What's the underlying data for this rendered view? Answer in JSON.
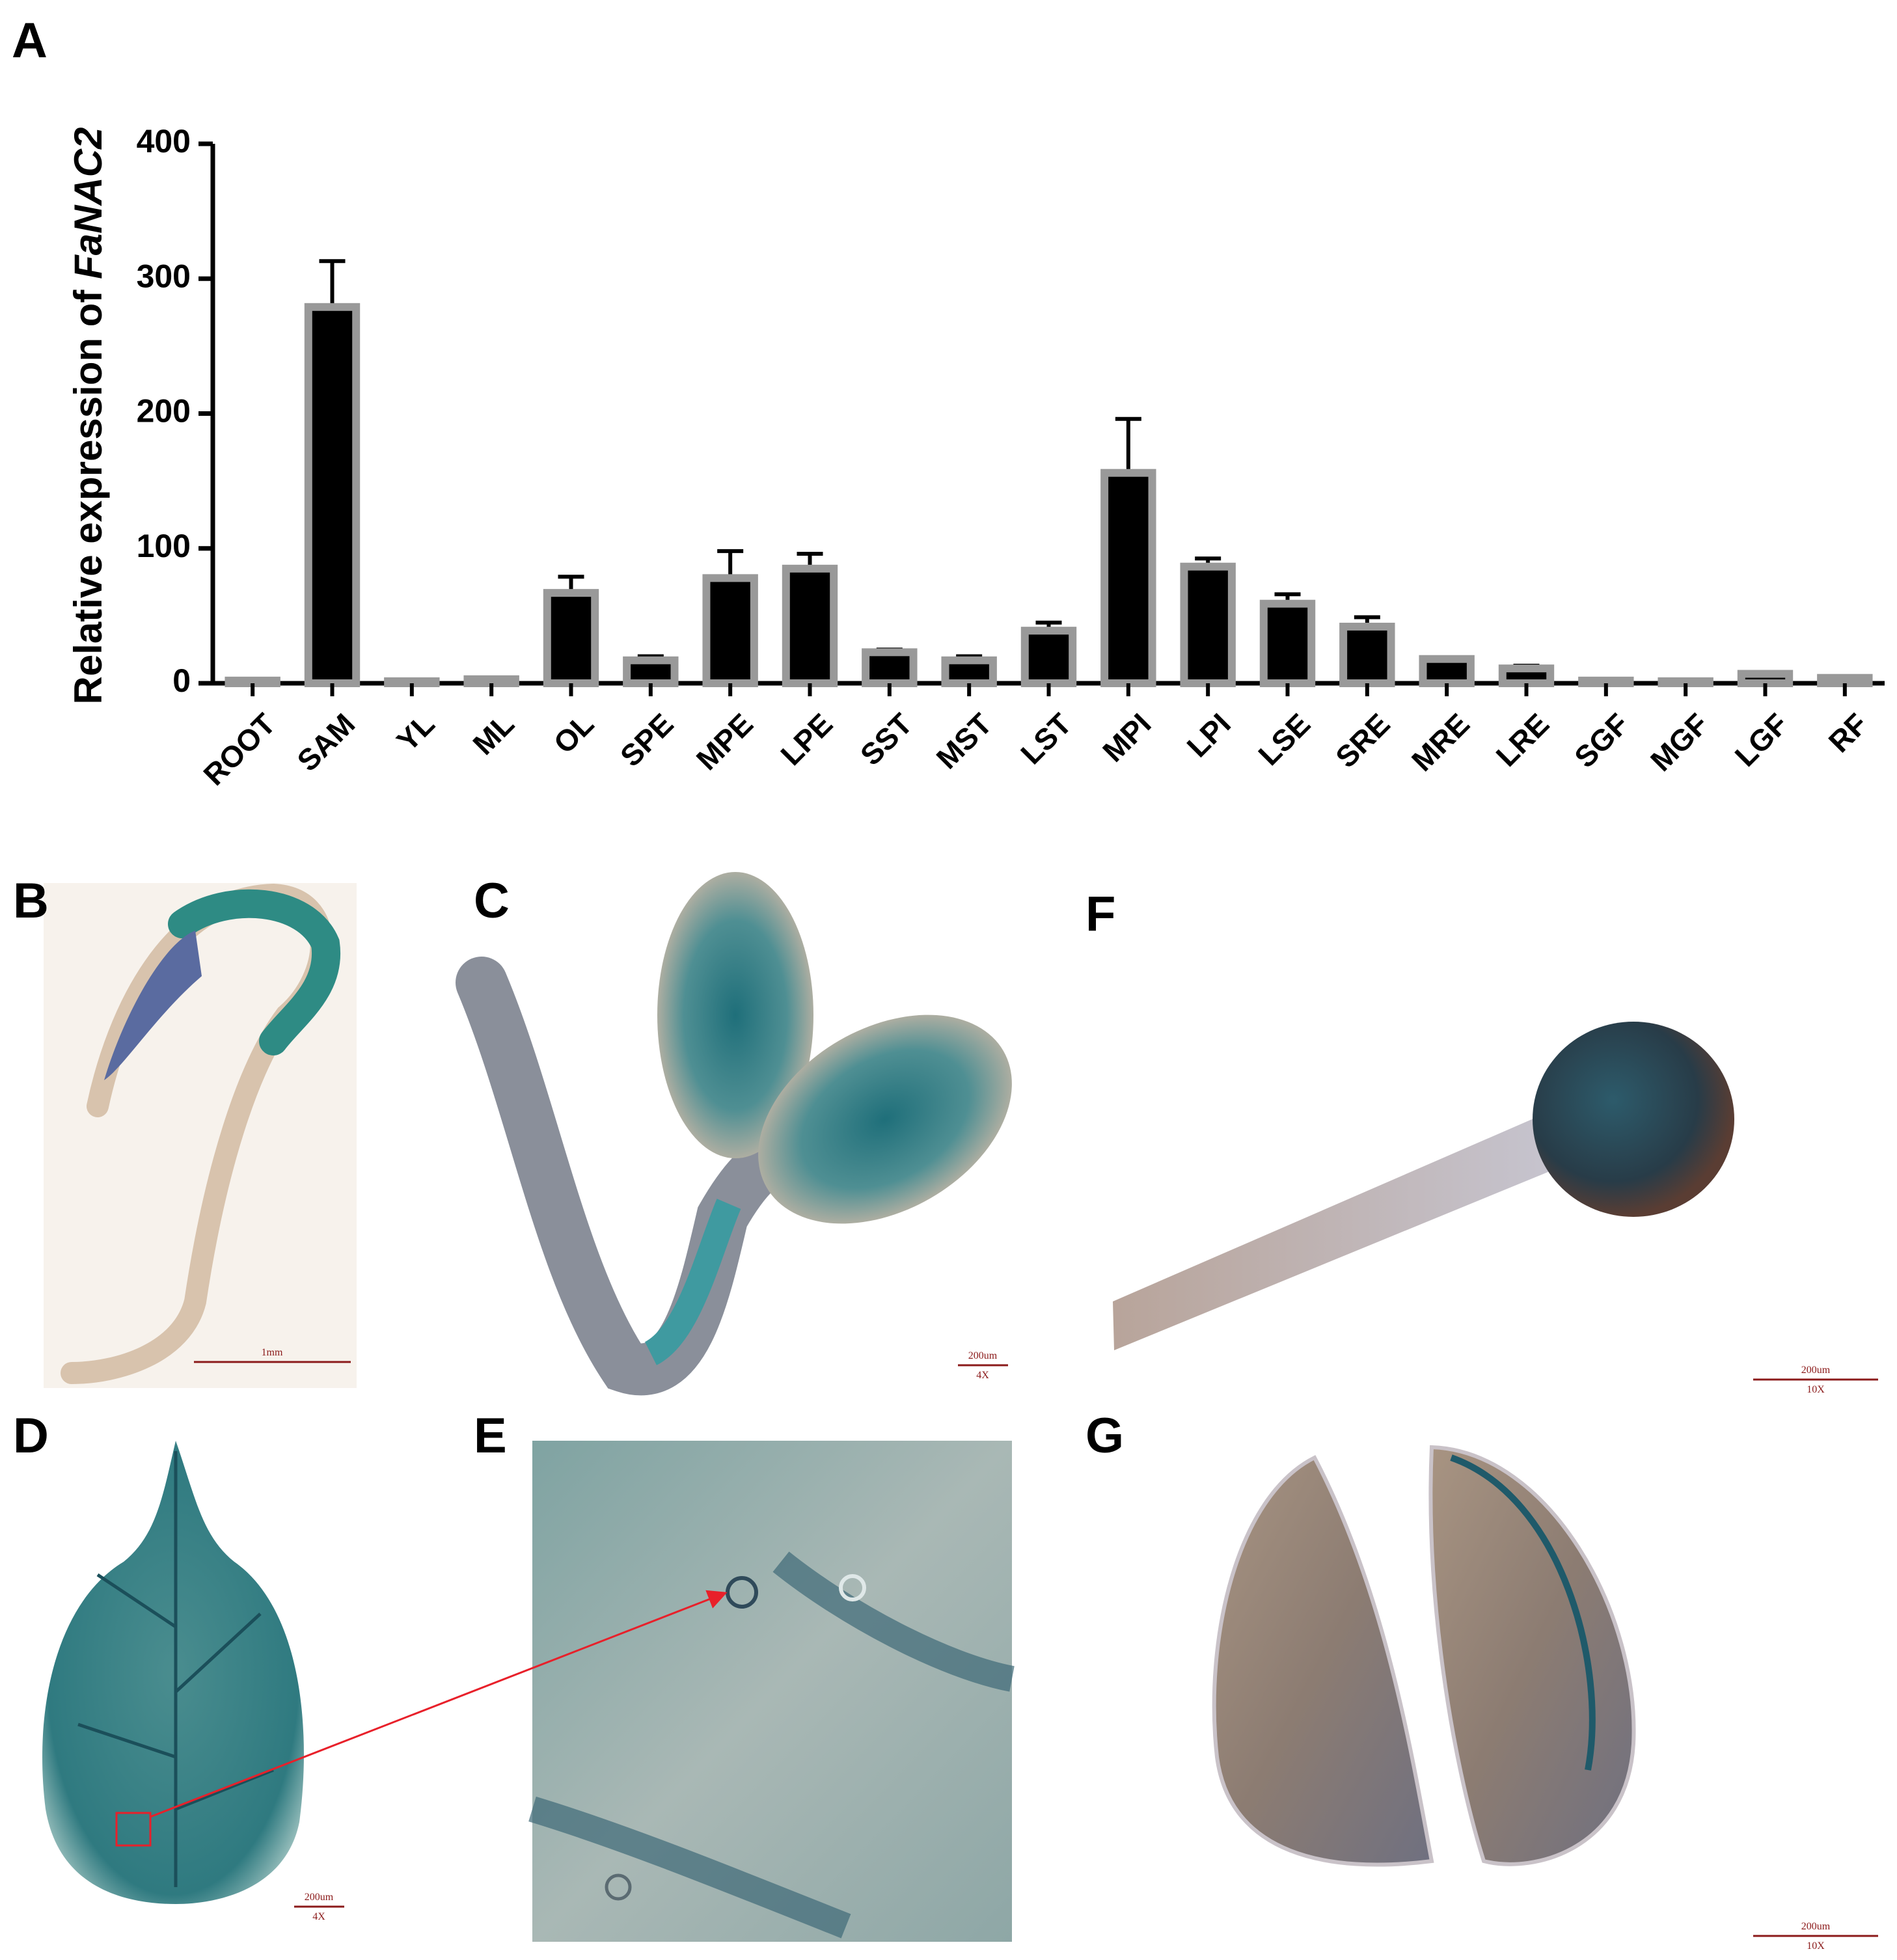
{
  "chart_data": {
    "type": "bar",
    "panel_label": "A",
    "ylabel_parts": [
      "Relative expression of",
      "FaNAC2"
    ],
    "categories": [
      "ROOT",
      "SAM",
      "YL",
      "ML",
      "OL",
      "SPE",
      "MPE",
      "LPE",
      "SST",
      "MST",
      "LST",
      "MPI",
      "LPI",
      "LSE",
      "SRE",
      "MRE",
      "LRE",
      "SGF",
      "MGF",
      "LGF",
      "RF"
    ],
    "values": [
      2,
      279,
      1.5,
      3,
      67,
      17,
      78,
      85,
      23,
      17,
      39,
      156,
      86.5,
      59,
      42,
      18,
      11,
      2,
      1.5,
      7,
      4
    ],
    "errors": [
      0.5,
      34,
      0,
      1,
      12,
      3,
      20,
      11,
      2,
      3,
      6,
      40,
      6,
      7,
      7,
      1,
      2,
      0,
      0.5,
      1,
      1
    ],
    "color": "#000000",
    "edgecolor": "#999999",
    "ylim": [
      0,
      400
    ],
    "yticks": [
      0,
      100,
      200,
      300,
      400
    ]
  },
  "panel_labels": [
    "B",
    "C",
    "D",
    "E",
    "F",
    "G"
  ],
  "scale_bars": [
    [
      "1mm"
    ],
    [
      "200um",
      "4X"
    ],
    [
      "200um",
      "10X"
    ],
    [
      "200um",
      "4X"
    ],
    [
      "200um",
      "10X"
    ]
  ]
}
